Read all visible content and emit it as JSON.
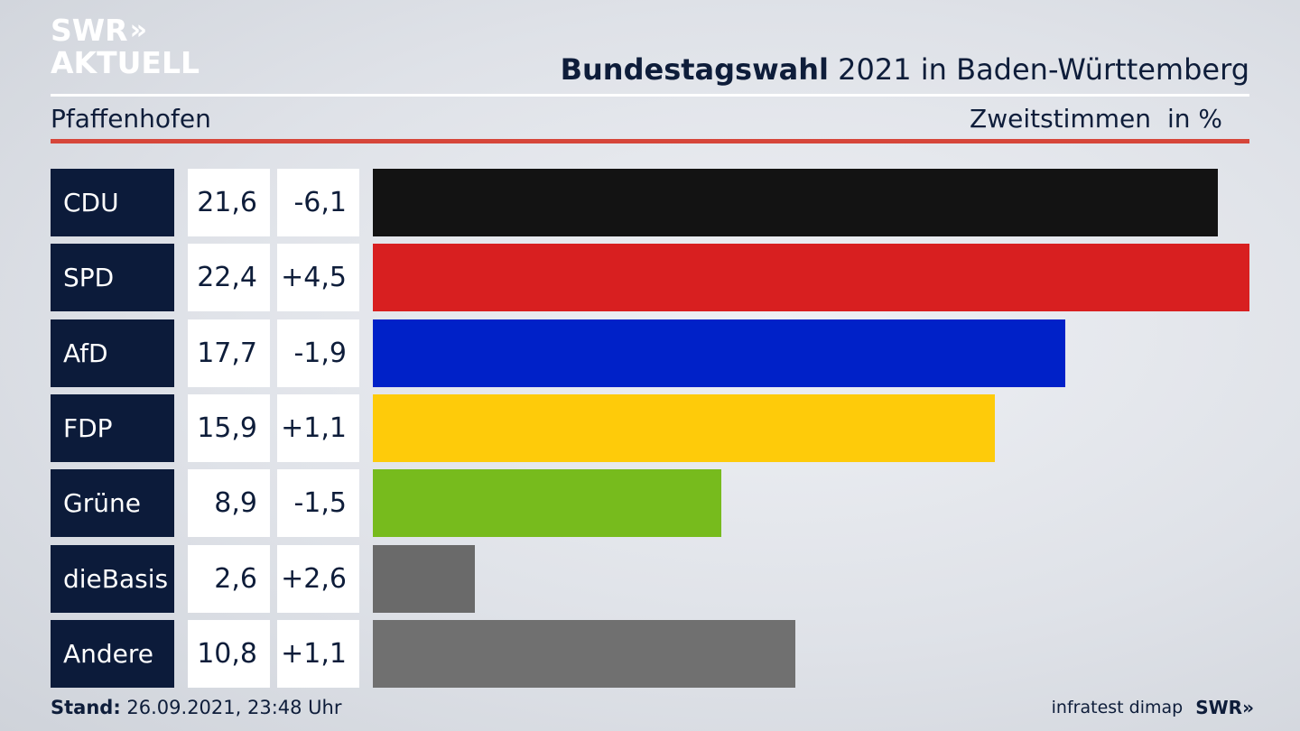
{
  "logo": {
    "line1": "SWR",
    "arrows": "»",
    "line2": "AKTUELL"
  },
  "title": {
    "bold": "Bundestagswahl",
    "rest": " 2021 in Baden-Württemberg"
  },
  "region": "Pfaffenhofen",
  "votes_label": "Zweitstimmen",
  "unit_label": "in %",
  "colors": {
    "navy": "#0c1b3a",
    "red_rule": "#d6463a"
  },
  "chart_data": {
    "type": "bar",
    "orientation": "horizontal",
    "categories": [
      "CDU",
      "SPD",
      "AfD",
      "FDP",
      "Grüne",
      "dieBasis",
      "Andere"
    ],
    "values": [
      21.6,
      22.4,
      17.7,
      15.9,
      8.9,
      2.6,
      10.8
    ],
    "value_labels": [
      "21,6",
      "22,4",
      "17,7",
      "15,9",
      "8,9",
      "2,6",
      "10,8"
    ],
    "diff_labels": [
      "-6,1",
      "+4,5",
      "-1,9",
      "+1,1",
      "-1,5",
      "+2,6",
      "+1,1"
    ],
    "diffs": [
      -6.1,
      4.5,
      -1.9,
      1.1,
      -1.5,
      2.6,
      1.1
    ],
    "bar_colors": [
      "#131313",
      "#d81f20",
      "#0021c8",
      "#fecb0a",
      "#77bb1d",
      "#6a6a6a",
      "#707070"
    ],
    "xlim": [
      0,
      22.4
    ]
  },
  "footer": {
    "stand_label": "Stand:",
    "stand_value": " 26.09.2021, 23:48 Uhr",
    "source": "infratest dimap",
    "brand": "SWR",
    "brand_arrows": "»"
  }
}
